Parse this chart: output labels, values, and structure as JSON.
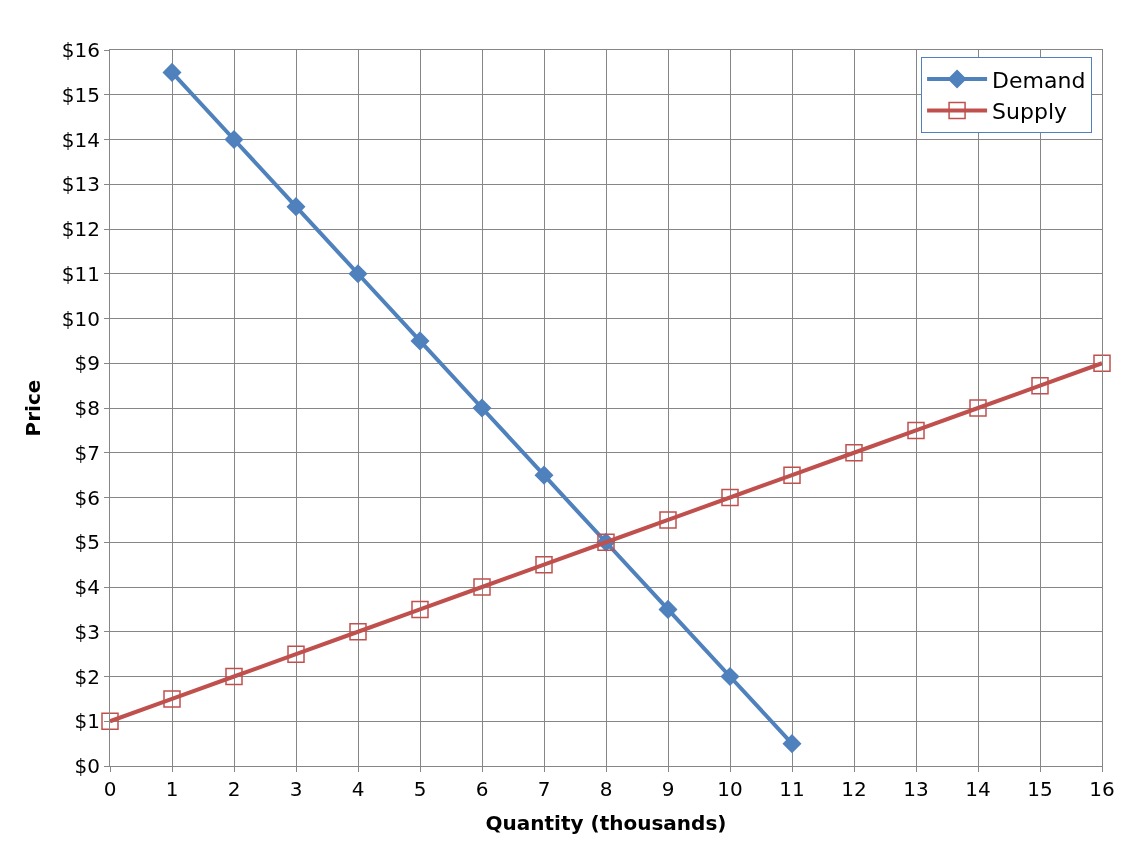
{
  "chart_data": {
    "type": "line",
    "xlabel": "Quantity (thousands)",
    "ylabel": "Price",
    "series": [
      {
        "name": "Demand",
        "color": "#4f81bd",
        "marker": "diamond",
        "x": [
          1,
          2,
          3,
          4,
          5,
          6,
          7,
          8,
          9,
          10,
          11
        ],
        "values": [
          15.5,
          14,
          12.5,
          11,
          9.5,
          8,
          6.5,
          5,
          3.5,
          2,
          0.5
        ]
      },
      {
        "name": "Supply",
        "color": "#c0504d",
        "marker": "square",
        "x": [
          0,
          1,
          2,
          3,
          4,
          5,
          6,
          7,
          8,
          9,
          10,
          11,
          12,
          13,
          14,
          15,
          16
        ],
        "values": [
          1,
          1.5,
          2,
          2.5,
          3,
          3.5,
          4,
          4.5,
          5,
          5.5,
          6,
          6.5,
          7,
          7.5,
          8,
          8.5,
          9
        ]
      }
    ],
    "xlim": [
      0,
      16
    ],
    "xticks": [
      0,
      1,
      2,
      3,
      4,
      5,
      6,
      7,
      8,
      9,
      10,
      11,
      12,
      13,
      14,
      15,
      16
    ],
    "ylim": [
      0,
      16
    ],
    "yticks": [
      {
        "value": 0,
        "label": "$0"
      },
      {
        "value": 1,
        "label": "$1"
      },
      {
        "value": 2,
        "label": "$2"
      },
      {
        "value": 3,
        "label": "$3"
      },
      {
        "value": 4,
        "label": "$4"
      },
      {
        "value": 5,
        "label": "$5"
      },
      {
        "value": 6,
        "label": "$6"
      },
      {
        "value": 7,
        "label": "$7"
      },
      {
        "value": 8,
        "label": "$8"
      },
      {
        "value": 9,
        "label": "$9"
      },
      {
        "value": 10,
        "label": "$10"
      },
      {
        "value": 11,
        "label": "$11"
      },
      {
        "value": 12,
        "label": "$12"
      },
      {
        "value": 13,
        "label": "$13"
      },
      {
        "value": 14,
        "label": "$14"
      },
      {
        "value": 15,
        "label": "$15"
      },
      {
        "value": 16,
        "label": "$16"
      }
    ],
    "grid": true,
    "legend": "top right",
    "line_style": "solid"
  }
}
